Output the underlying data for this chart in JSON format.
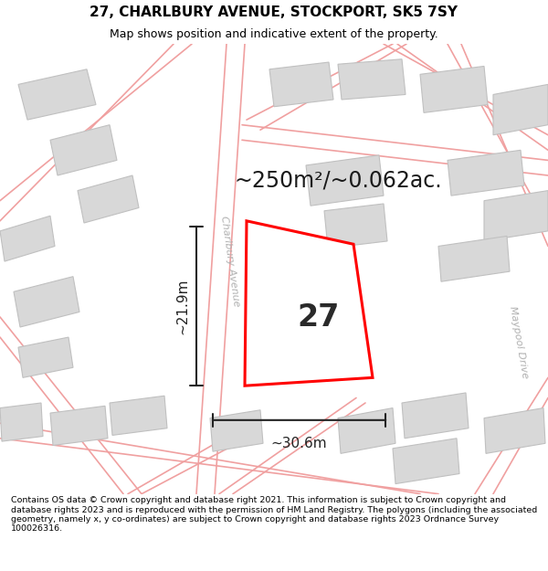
{
  "title": "27, CHARLBURY AVENUE, STOCKPORT, SK5 7SY",
  "subtitle": "Map shows position and indicative extent of the property.",
  "footer": "Contains OS data © Crown copyright and database right 2021. This information is subject to Crown copyright and database rights 2023 and is reproduced with the permission of HM Land Registry. The polygons (including the associated geometry, namely x, y co-ordinates) are subject to Crown copyright and database rights 2023 Ordnance Survey 100026316.",
  "area_label": "~250m²/~0.062ac.",
  "width_label": "~30.6m",
  "height_label": "~21.9m",
  "plot_number": "27",
  "street_label": "Charlbury Avenue",
  "road_label": "Maypool Drive",
  "map_bg": "#f0eeee",
  "building_fill": "#d8d8d8",
  "building_edge": "#c0c0c0",
  "road_line_color": "#f0a0a0",
  "highlight_color": "#ff0000",
  "dim_line_color": "#222222",
  "title_fontsize": 11,
  "subtitle_fontsize": 9,
  "footer_fontsize": 6.8,
  "area_fontsize": 17,
  "dim_fontsize": 11,
  "plot_fontsize": 24,
  "street_fontsize": 8,
  "road_fontsize": 8
}
